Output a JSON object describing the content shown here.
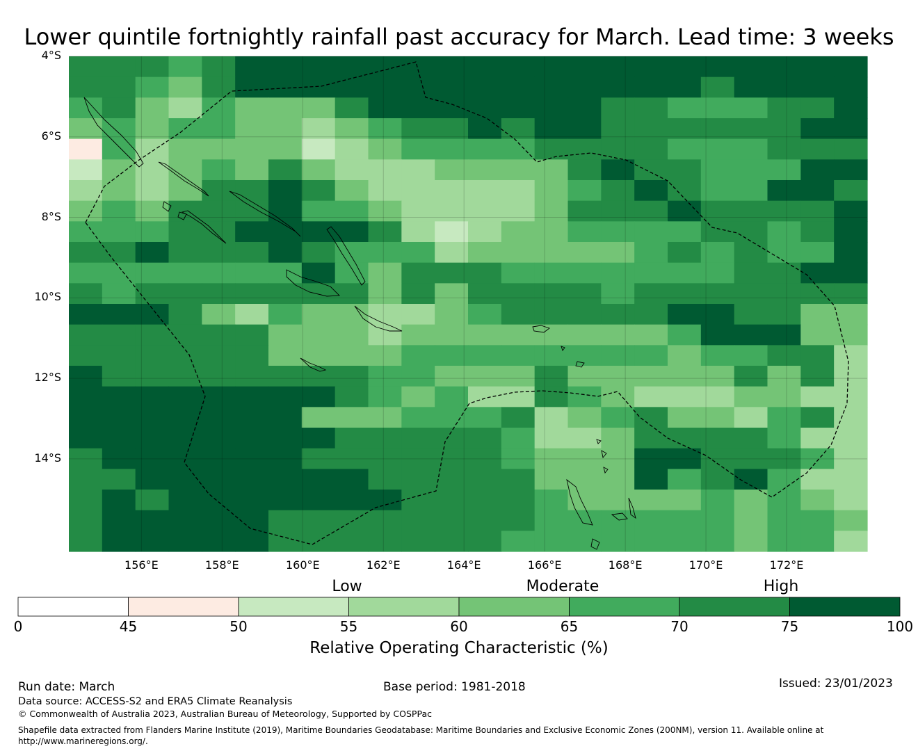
{
  "title": "Lower quintile fortnightly rainfall past accuracy for March. Lead time: 3 weeks",
  "map": {
    "lat_labels": [
      "4°S",
      "6°S",
      "8°S",
      "10°S",
      "12°S",
      "14°S"
    ],
    "lon_labels": [
      "156°E",
      "158°E",
      "160°E",
      "162°E",
      "164°E",
      "166°E",
      "168°E",
      "170°E",
      "172°E"
    ],
    "lat_range": [
      -4.0,
      -16.3
    ],
    "lon_range": [
      154.2,
      174.0
    ],
    "grid_values": [
      [
        70,
        70,
        70,
        65,
        70,
        75,
        75,
        75,
        75,
        75,
        75,
        75,
        75,
        75,
        75,
        75,
        75,
        75,
        75,
        75,
        75,
        75,
        75,
        75
      ],
      [
        70,
        70,
        65,
        60,
        70,
        75,
        75,
        75,
        75,
        75,
        75,
        75,
        75,
        75,
        75,
        75,
        75,
        75,
        75,
        70,
        75,
        75,
        75,
        75
      ],
      [
        65,
        70,
        60,
        55,
        65,
        60,
        60,
        60,
        70,
        75,
        75,
        75,
        75,
        75,
        75,
        75,
        70,
        70,
        65,
        65,
        65,
        70,
        70,
        75
      ],
      [
        60,
        65,
        60,
        65,
        65,
        60,
        60,
        55,
        60,
        65,
        70,
        70,
        75,
        70,
        75,
        75,
        70,
        70,
        70,
        70,
        70,
        70,
        75,
        75
      ],
      [
        45,
        65,
        55,
        60,
        60,
        60,
        60,
        50,
        55,
        60,
        65,
        65,
        65,
        65,
        70,
        70,
        70,
        70,
        65,
        65,
        65,
        70,
        70,
        70
      ],
      [
        50,
        60,
        55,
        60,
        65,
        60,
        70,
        60,
        55,
        55,
        55,
        60,
        60,
        60,
        60,
        70,
        75,
        70,
        70,
        65,
        65,
        65,
        75,
        75
      ],
      [
        55,
        60,
        55,
        60,
        70,
        70,
        75,
        70,
        60,
        55,
        55,
        55,
        55,
        55,
        60,
        65,
        70,
        75,
        70,
        65,
        65,
        75,
        75,
        70
      ],
      [
        60,
        65,
        60,
        70,
        70,
        70,
        75,
        65,
        65,
        60,
        55,
        55,
        55,
        55,
        60,
        70,
        70,
        70,
        75,
        70,
        70,
        70,
        70,
        75
      ],
      [
        65,
        65,
        65,
        70,
        70,
        75,
        75,
        75,
        75,
        70,
        55,
        50,
        55,
        60,
        60,
        65,
        65,
        65,
        65,
        70,
        70,
        65,
        70,
        75
      ],
      [
        70,
        70,
        75,
        70,
        70,
        70,
        75,
        70,
        65,
        65,
        65,
        55,
        60,
        60,
        60,
        60,
        60,
        65,
        70,
        65,
        70,
        65,
        65,
        75
      ],
      [
        65,
        65,
        65,
        65,
        65,
        65,
        65,
        75,
        65,
        60,
        70,
        70,
        70,
        65,
        65,
        65,
        65,
        65,
        65,
        65,
        70,
        70,
        75,
        75
      ],
      [
        70,
        65,
        70,
        70,
        70,
        70,
        70,
        70,
        70,
        60,
        70,
        60,
        70,
        70,
        70,
        70,
        65,
        70,
        70,
        70,
        70,
        70,
        70,
        70
      ],
      [
        75,
        75,
        75,
        70,
        60,
        55,
        65,
        60,
        60,
        55,
        55,
        60,
        65,
        70,
        70,
        70,
        70,
        70,
        75,
        75,
        70,
        70,
        60,
        60
      ],
      [
        70,
        70,
        70,
        70,
        70,
        70,
        60,
        60,
        60,
        55,
        60,
        60,
        60,
        60,
        60,
        60,
        60,
        60,
        65,
        75,
        75,
        75,
        60,
        60
      ],
      [
        70,
        70,
        70,
        70,
        70,
        70,
        60,
        60,
        60,
        60,
        65,
        65,
        65,
        65,
        65,
        65,
        65,
        65,
        60,
        65,
        65,
        70,
        70,
        55
      ],
      [
        75,
        70,
        70,
        70,
        70,
        70,
        70,
        70,
        70,
        65,
        65,
        60,
        60,
        60,
        70,
        60,
        60,
        60,
        60,
        60,
        70,
        60,
        70,
        55
      ],
      [
        100,
        100,
        75,
        75,
        75,
        75,
        75,
        75,
        70,
        65,
        60,
        65,
        55,
        55,
        70,
        65,
        60,
        55,
        55,
        55,
        60,
        60,
        55,
        55
      ],
      [
        100,
        100,
        75,
        75,
        75,
        75,
        75,
        60,
        60,
        60,
        65,
        65,
        65,
        70,
        55,
        60,
        65,
        70,
        60,
        60,
        55,
        65,
        70,
        55
      ],
      [
        100,
        100,
        75,
        75,
        75,
        75,
        75,
        75,
        70,
        70,
        70,
        70,
        70,
        65,
        55,
        55,
        60,
        70,
        70,
        70,
        70,
        65,
        55,
        55
      ],
      [
        70,
        100,
        100,
        100,
        75,
        75,
        75,
        70,
        70,
        70,
        70,
        70,
        70,
        65,
        60,
        60,
        60,
        75,
        75,
        70,
        70,
        70,
        65,
        55
      ],
      [
        70,
        70,
        100,
        100,
        100,
        100,
        100,
        75,
        75,
        70,
        70,
        70,
        70,
        70,
        60,
        60,
        60,
        75,
        65,
        70,
        75,
        65,
        55,
        55
      ],
      [
        70,
        100,
        70,
        100,
        100,
        100,
        100,
        100,
        100,
        75,
        70,
        70,
        70,
        70,
        65,
        60,
        60,
        60,
        60,
        65,
        60,
        65,
        60,
        55
      ],
      [
        70,
        100,
        75,
        100,
        100,
        100,
        70,
        70,
        70,
        70,
        70,
        70,
        70,
        70,
        65,
        65,
        65,
        65,
        65,
        65,
        60,
        65,
        65,
        60
      ],
      [
        70,
        100,
        75,
        100,
        100,
        100,
        70,
        70,
        70,
        70,
        70,
        70,
        70,
        65,
        65,
        65,
        65,
        65,
        65,
        65,
        60,
        65,
        65,
        55
      ]
    ]
  },
  "colorbar": {
    "categories": [
      "Low",
      "Moderate",
      "High"
    ],
    "ticks": [
      "0",
      "45",
      "50",
      "55",
      "60",
      "65",
      "70",
      "75",
      "100"
    ],
    "colors": [
      "#ffffff",
      "#fdebe2",
      "#c7e9c0",
      "#a1d99b",
      "#74c476",
      "#41ab5d",
      "#238b45",
      "#005a32"
    ],
    "label": "Relative Operating Characteristic (%)"
  },
  "footer": {
    "run_date": "Run date: March",
    "base_period": "Base period: 1981-2018",
    "issued": "Issued: 23/01/2023",
    "data_source": "Data source: ACCESS-S2 and ERA5 Climate Reanalysis",
    "copyright": "© Commonwealth of Australia 2023, Australian Bureau of Meteorology, Supported by COSPPac",
    "shapefile_line1": "Shapefile data extracted from Flanders Marine Institute (2019), Maritime Boundaries Geodatabase: Maritime Boundaries and Exclusive Economic Zones (200NM), version 11. Available online at",
    "shapefile_line2": "http://www.marineregions.org/."
  }
}
